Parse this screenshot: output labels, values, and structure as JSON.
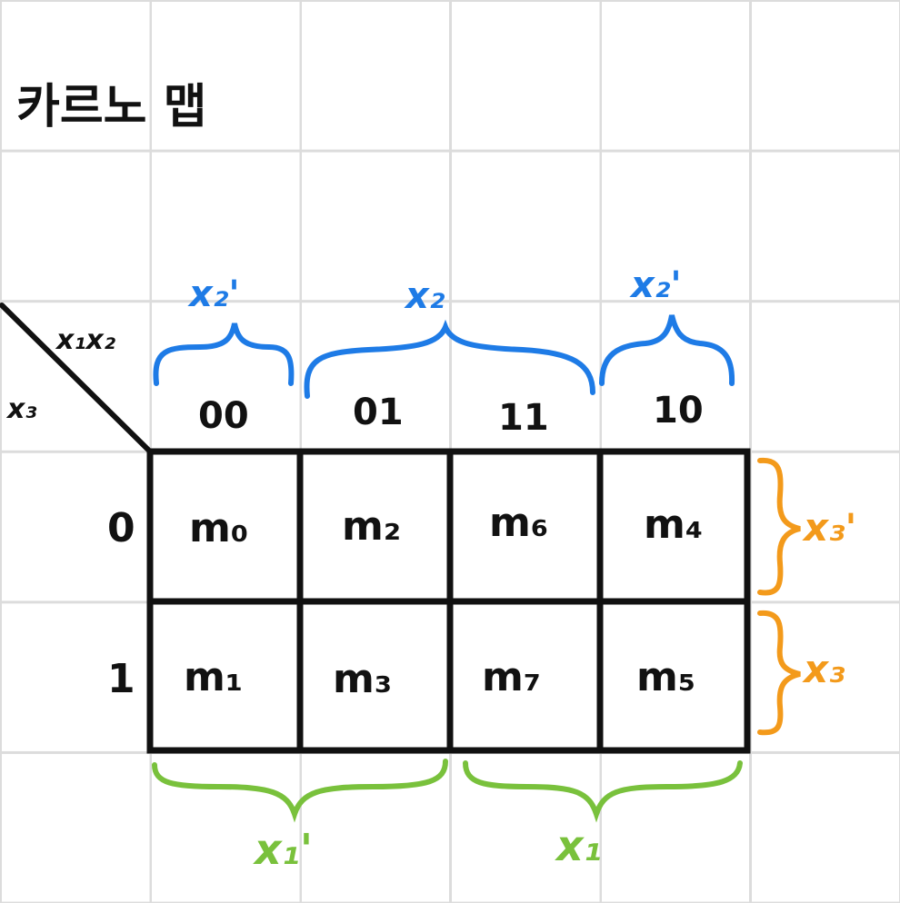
{
  "title": "카르노 맵",
  "header": {
    "col_var": "x₁x₂",
    "row_var": "x₃"
  },
  "columns": [
    "00",
    "01",
    "11",
    "10"
  ],
  "rows": [
    "0",
    "1"
  ],
  "cells": [
    [
      "m₀",
      "m₂",
      "m₆",
      "m₄"
    ],
    [
      "m₁",
      "m₃",
      "m₇",
      "m₅"
    ]
  ],
  "top_groups": [
    "x₂'",
    "x₂",
    "x₂'"
  ],
  "right_groups": [
    "x₃'",
    "x₃"
  ],
  "bottom_groups": [
    "x₁'",
    "x₁"
  ],
  "colors": {
    "top": "#1e7be6",
    "right": "#f39a1b",
    "bottom": "#79c13c",
    "ink": "#111111"
  }
}
